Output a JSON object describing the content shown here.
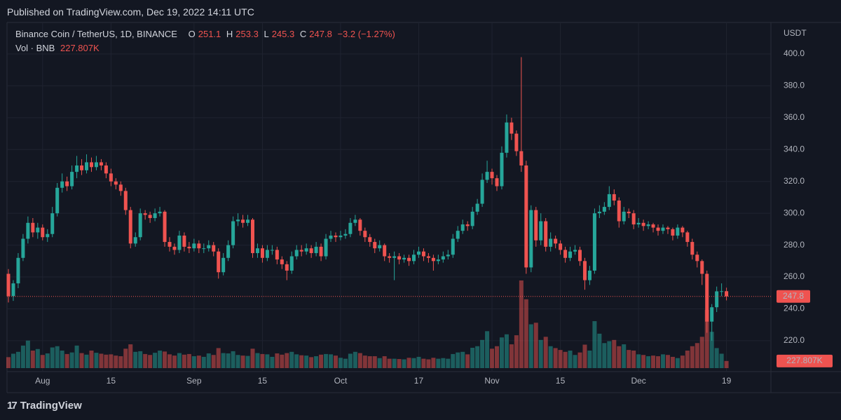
{
  "header": {
    "published": "Published on TradingView.com, Dec 19, 2022 14:11 UTC",
    "brand": "TradingView"
  },
  "chart_data": {
    "type": "candlestick",
    "symbol": "Binance Coin / TetherUS, 1D, BINANCE",
    "ohlc_labels": [
      "O",
      "H",
      "L",
      "C"
    ],
    "change": "−3.2 (−1.27%)",
    "volume_title": "Vol · BNB",
    "currency": "USDT",
    "up_color": "#26a69a",
    "down_color": "#ef5350",
    "ylim": [
      200.6,
      419.8
    ],
    "yticks": [
      {
        "value": 400,
        "label": "400.0"
      },
      {
        "value": 380,
        "label": "380.0"
      },
      {
        "value": 360,
        "label": "360.0"
      },
      {
        "value": 340,
        "label": "340.0"
      },
      {
        "value": 320,
        "label": "320.0"
      },
      {
        "value": 300,
        "label": "300.0"
      },
      {
        "value": 280,
        "label": "280.0"
      },
      {
        "value": 260,
        "label": "260.0"
      },
      {
        "value": 240,
        "label": "240.0"
      },
      {
        "value": 220,
        "label": "220.0"
      }
    ],
    "xticks": [
      {
        "value": 7,
        "label": "Aug"
      },
      {
        "value": 21,
        "label": "15"
      },
      {
        "value": 38,
        "label": "Sep"
      },
      {
        "value": 52,
        "label": "15"
      },
      {
        "value": 68,
        "label": "Oct"
      },
      {
        "value": 84,
        "label": "17"
      },
      {
        "value": 99,
        "label": "Nov"
      },
      {
        "value": 113,
        "label": "15"
      },
      {
        "value": 129,
        "label": "Dec"
      },
      {
        "value": 147,
        "label": "19"
      }
    ],
    "grid": true,
    "ohlc": [
      [
        262,
        265,
        244,
        248
      ],
      [
        248,
        258,
        245,
        256
      ],
      [
        256,
        275,
        253,
        272
      ],
      [
        272,
        287,
        270,
        284
      ],
      [
        284,
        298,
        281,
        294
      ],
      [
        294,
        297,
        285,
        288
      ],
      [
        288,
        294,
        284,
        291
      ],
      [
        291,
        293,
        283,
        285
      ],
      [
        285,
        290,
        282,
        287
      ],
      [
        287,
        304,
        285,
        300
      ],
      [
        300,
        319,
        298,
        316
      ],
      [
        316,
        325,
        313,
        320
      ],
      [
        320,
        323,
        314,
        317
      ],
      [
        317,
        330,
        315,
        326
      ],
      [
        326,
        336,
        322,
        330
      ],
      [
        330,
        334,
        324,
        327
      ],
      [
        327,
        337,
        325,
        332
      ],
      [
        332,
        335,
        326,
        329
      ],
      [
        329,
        336,
        327,
        332
      ],
      [
        332,
        334,
        327,
        330
      ],
      [
        330,
        332,
        322,
        325
      ],
      [
        325,
        328,
        317,
        320
      ],
      [
        320,
        322,
        315,
        318
      ],
      [
        318,
        320,
        311,
        314
      ],
      [
        314,
        316,
        299,
        302
      ],
      [
        302,
        304,
        278,
        281
      ],
      [
        281,
        288,
        279,
        285
      ],
      [
        285,
        303,
        283,
        300
      ],
      [
        300,
        302,
        296,
        299
      ],
      [
        299,
        301,
        294,
        297
      ],
      [
        297,
        303,
        295,
        300
      ],
      [
        300,
        304,
        298,
        301
      ],
      [
        301,
        302,
        279,
        282
      ],
      [
        282,
        285,
        276,
        279
      ],
      [
        279,
        281,
        274,
        277
      ],
      [
        277,
        289,
        275,
        286
      ],
      [
        286,
        288,
        276,
        279
      ],
      [
        279,
        282,
        275,
        278
      ],
      [
        278,
        284,
        276,
        281
      ],
      [
        281,
        283,
        275,
        278
      ],
      [
        278,
        281,
        275,
        278
      ],
      [
        278,
        283,
        276,
        280
      ],
      [
        280,
        282,
        273,
        276
      ],
      [
        276,
        278,
        259,
        263
      ],
      [
        263,
        275,
        261,
        272
      ],
      [
        272,
        283,
        270,
        280
      ],
      [
        280,
        298,
        278,
        295
      ],
      [
        295,
        300,
        292,
        296
      ],
      [
        296,
        299,
        291,
        294
      ],
      [
        294,
        299,
        292,
        296
      ],
      [
        296,
        297,
        272,
        275
      ],
      [
        275,
        281,
        272,
        278
      ],
      [
        278,
        280,
        269,
        272
      ],
      [
        272,
        280,
        270,
        277
      ],
      [
        277,
        280,
        274,
        277
      ],
      [
        277,
        279,
        268,
        271
      ],
      [
        271,
        273,
        265,
        268
      ],
      [
        268,
        270,
        258,
        264
      ],
      [
        264,
        276,
        262,
        273
      ],
      [
        273,
        280,
        271,
        277
      ],
      [
        277,
        280,
        273,
        276
      ],
      [
        276,
        281,
        274,
        278
      ],
      [
        278,
        280,
        272,
        275
      ],
      [
        275,
        282,
        273,
        279
      ],
      [
        279,
        281,
        270,
        273
      ],
      [
        273,
        287,
        271,
        284
      ],
      [
        284,
        289,
        282,
        286
      ],
      [
        286,
        288,
        282,
        285
      ],
      [
        285,
        289,
        283,
        286
      ],
      [
        286,
        290,
        284,
        287
      ],
      [
        287,
        297,
        285,
        294
      ],
      [
        294,
        299,
        292,
        296
      ],
      [
        296,
        297,
        286,
        289
      ],
      [
        289,
        291,
        282,
        285
      ],
      [
        285,
        287,
        279,
        282
      ],
      [
        282,
        284,
        275,
        278
      ],
      [
        278,
        283,
        276,
        280
      ],
      [
        280,
        281,
        270,
        273
      ],
      [
        273,
        275,
        269,
        272
      ],
      [
        272,
        276,
        258,
        273
      ],
      [
        273,
        275,
        268,
        271
      ],
      [
        271,
        274,
        269,
        272
      ],
      [
        272,
        274,
        267,
        270
      ],
      [
        270,
        277,
        268,
        274
      ],
      [
        274,
        279,
        272,
        276
      ],
      [
        276,
        278,
        270,
        273
      ],
      [
        273,
        275,
        269,
        272
      ],
      [
        272,
        274,
        264,
        270
      ],
      [
        270,
        274,
        268,
        271
      ],
      [
        271,
        276,
        269,
        273
      ],
      [
        273,
        277,
        271,
        274
      ],
      [
        274,
        287,
        272,
        284
      ],
      [
        284,
        292,
        282,
        289
      ],
      [
        289,
        296,
        287,
        293
      ],
      [
        293,
        295,
        289,
        292
      ],
      [
        292,
        304,
        290,
        301
      ],
      [
        301,
        309,
        299,
        306
      ],
      [
        306,
        325,
        304,
        321
      ],
      [
        321,
        333,
        319,
        326
      ],
      [
        326,
        328,
        318,
        322
      ],
      [
        322,
        324,
        314,
        317
      ],
      [
        317,
        342,
        315,
        338
      ],
      [
        338,
        362,
        335,
        357
      ],
      [
        357,
        360,
        346,
        350
      ],
      [
        350,
        352,
        336,
        339
      ],
      [
        339,
        398,
        326,
        330
      ],
      [
        330,
        333,
        262,
        266
      ],
      [
        266,
        305,
        263,
        302
      ],
      [
        302,
        304,
        279,
        283
      ],
      [
        283,
        300,
        280,
        295
      ],
      [
        295,
        297,
        276,
        279
      ],
      [
        279,
        288,
        276,
        284
      ],
      [
        284,
        286,
        278,
        281
      ],
      [
        281,
        283,
        274,
        277
      ],
      [
        277,
        279,
        269,
        272
      ],
      [
        272,
        279,
        270,
        276
      ],
      [
        276,
        280,
        274,
        277
      ],
      [
        277,
        279,
        267,
        270
      ],
      [
        270,
        272,
        252,
        258
      ],
      [
        258,
        267,
        255,
        264
      ],
      [
        264,
        303,
        262,
        300
      ],
      [
        300,
        305,
        297,
        301
      ],
      [
        301,
        307,
        299,
        304
      ],
      [
        304,
        317,
        302,
        312
      ],
      [
        312,
        315,
        305,
        308
      ],
      [
        308,
        310,
        291,
        295
      ],
      [
        295,
        304,
        293,
        301
      ],
      [
        301,
        303,
        297,
        300
      ],
      [
        300,
        302,
        290,
        293
      ],
      [
        293,
        297,
        291,
        294
      ],
      [
        294,
        296,
        289,
        292
      ],
      [
        292,
        295,
        290,
        293
      ],
      [
        293,
        294,
        288,
        291
      ],
      [
        291,
        293,
        286,
        289
      ],
      [
        289,
        293,
        287,
        291
      ],
      [
        291,
        292,
        287,
        290
      ],
      [
        290,
        291,
        283,
        286
      ],
      [
        286,
        293,
        284,
        291
      ],
      [
        291,
        292,
        285,
        288
      ],
      [
        288,
        289,
        279,
        282
      ],
      [
        282,
        284,
        271,
        274
      ],
      [
        274,
        276,
        266,
        270
      ],
      [
        270,
        271,
        255,
        262
      ],
      [
        262,
        264,
        225,
        232
      ],
      [
        232,
        243,
        220,
        241
      ],
      [
        241,
        254,
        238,
        251
      ],
      [
        251,
        256,
        248,
        251.1
      ],
      [
        251.1,
        253.3,
        245.3,
        247.8
      ]
    ],
    "volume": [
      350000,
      460000,
      520000,
      720000,
      880000,
      560000,
      610000,
      420000,
      470000,
      660000,
      700000,
      560000,
      450000,
      500000,
      720000,
      480000,
      430000,
      560000,
      490000,
      460000,
      430000,
      440000,
      400000,
      380000,
      620000,
      760000,
      520000,
      540000,
      450000,
      420000,
      490000,
      560000,
      530000,
      440000,
      400000,
      480000,
      430000,
      450000,
      380000,
      400000,
      360000,
      470000,
      420000,
      640000,
      480000,
      470000,
      540000,
      420000,
      400000,
      390000,
      620000,
      480000,
      450000,
      440000,
      360000,
      470000,
      430000,
      480000,
      520000,
      440000,
      410000,
      400000,
      350000,
      380000,
      430000,
      450000,
      440000,
      400000,
      330000,
      300000,
      460000,
      520000,
      480000,
      400000,
      380000,
      380000,
      320000,
      380000,
      300000,
      300000,
      290000,
      280000,
      330000,
      320000,
      360000,
      300000,
      280000,
      330000,
      300000,
      320000,
      300000,
      450000,
      500000,
      520000,
      440000,
      650000,
      700000,
      900000,
      1180000,
      620000,
      700000,
      980000,
      1080000,
      760000,
      1050000,
      2800000,
      2200000,
      1400000,
      1450000,
      900000,
      1000000,
      700000,
      640000,
      580000,
      520000,
      560000,
      420000,
      500000,
      750000,
      560000,
      1500000,
      1100000,
      800000,
      860000,
      900000,
      700000,
      760000,
      580000,
      560000,
      440000,
      420000,
      380000,
      400000,
      380000,
      440000,
      420000,
      360000,
      320000,
      400000,
      560000,
      700000,
      800000,
      1000000,
      1860000,
      1160000,
      640000,
      460000,
      227807
    ],
    "volume_value_labels": {
      "147": "227.807K"
    }
  }
}
